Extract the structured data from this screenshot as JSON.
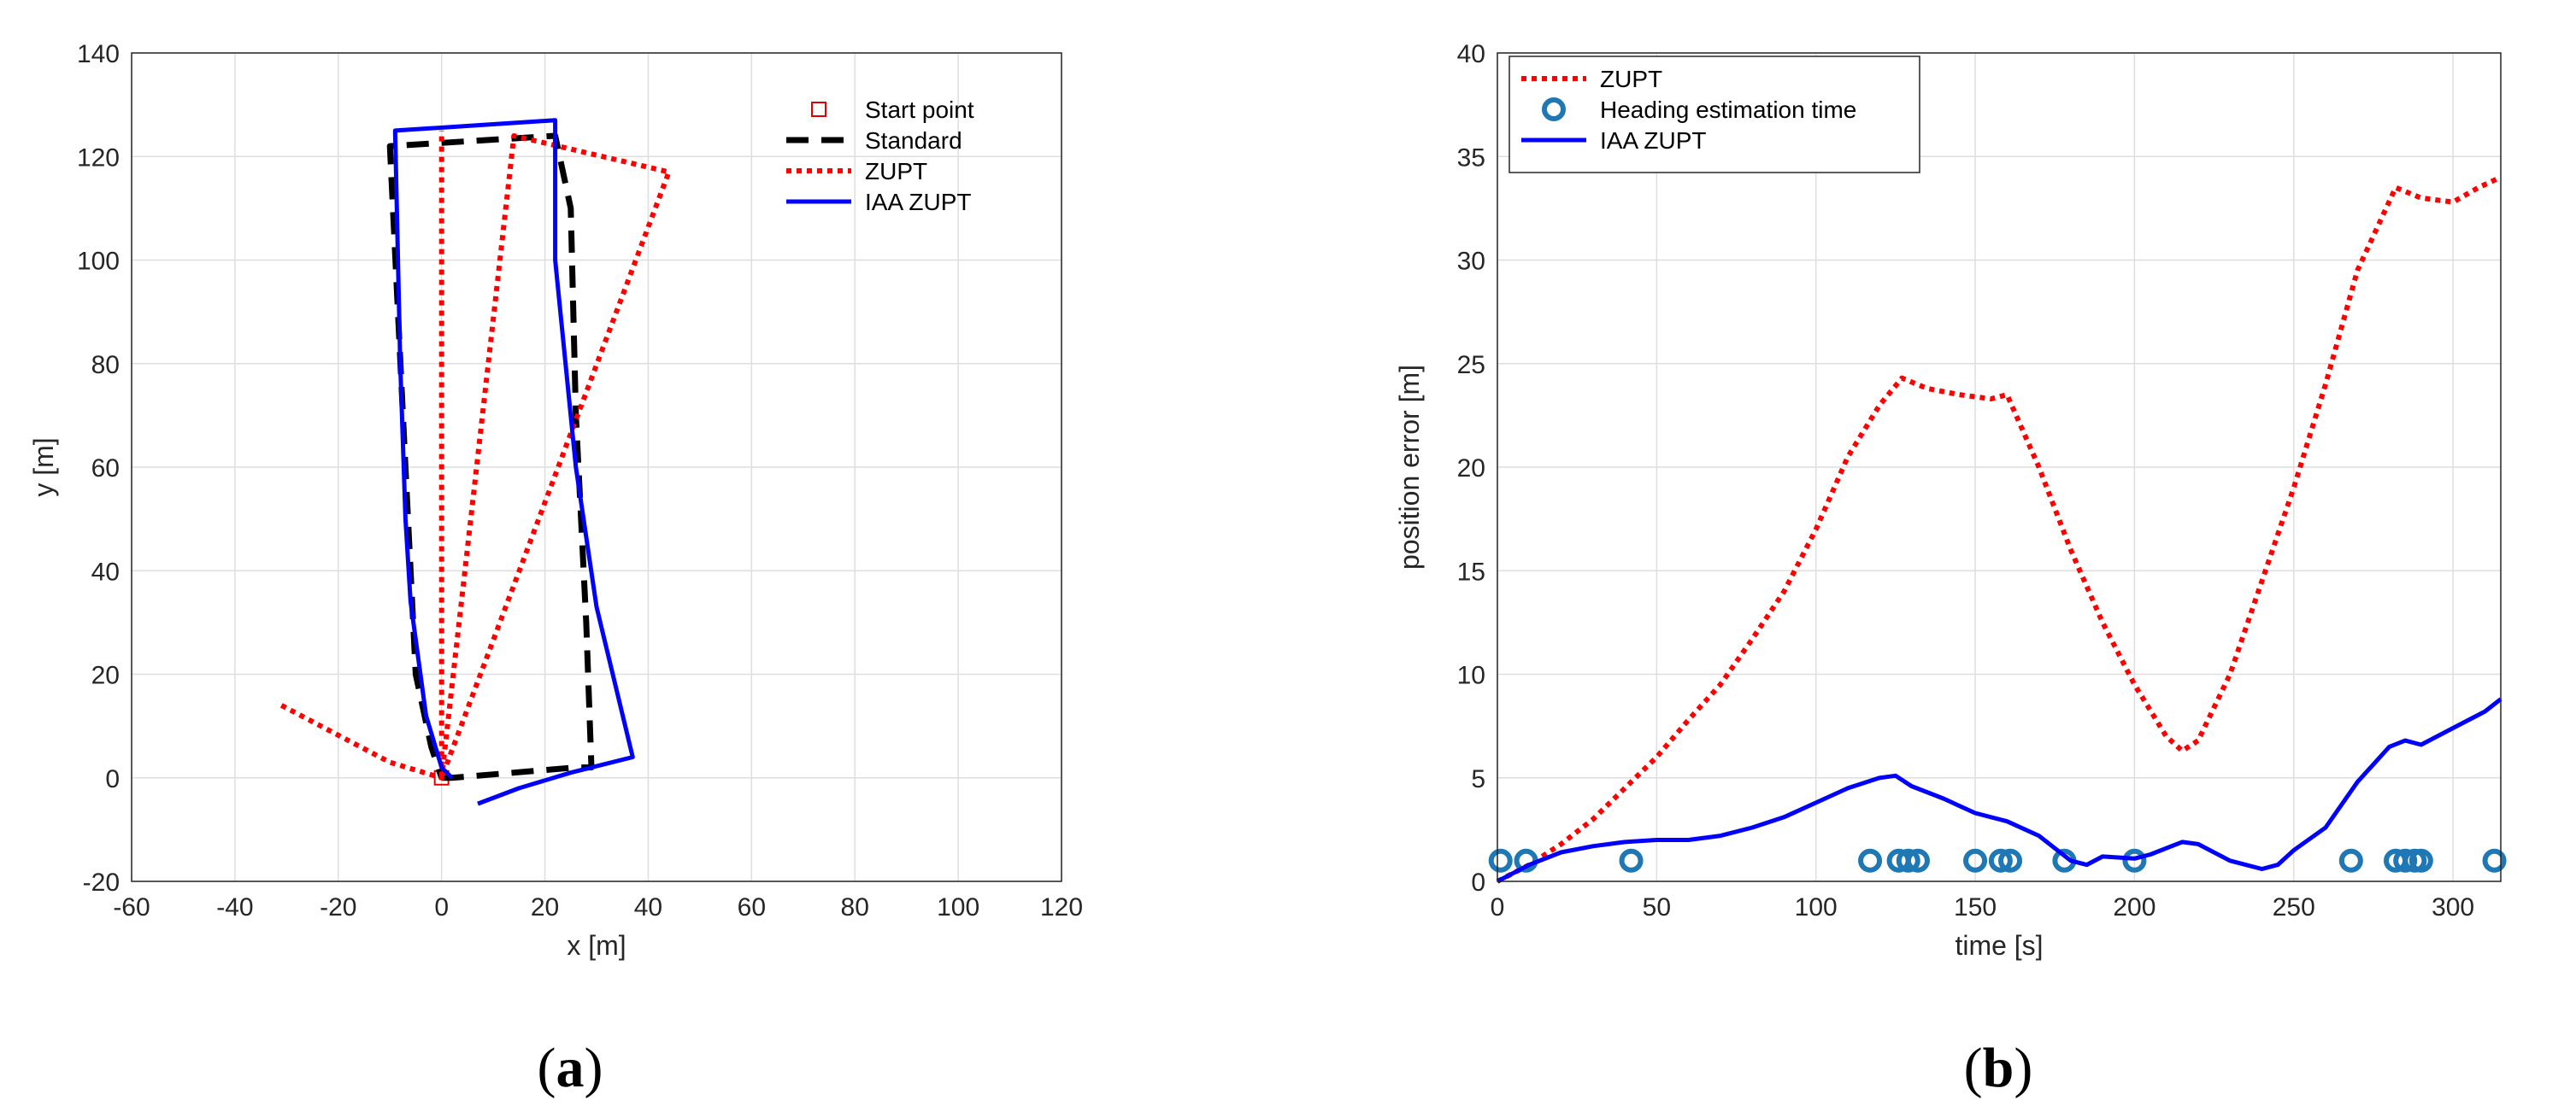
{
  "chart_data": [
    {
      "type": "line",
      "panel": "a",
      "panel_label": "(a)",
      "panel_letter": "a",
      "xlabel": "x [m]",
      "ylabel": "y [m]",
      "xlim": [
        -60,
        120
      ],
      "ylim": [
        -20,
        140
      ],
      "xticks": [
        -60,
        -40,
        -20,
        0,
        20,
        40,
        60,
        80,
        100,
        120
      ],
      "yticks": [
        -20,
        0,
        20,
        40,
        60,
        80,
        100,
        120,
        140
      ],
      "grid": true,
      "legend": {
        "placement": "top-right",
        "boxed": false
      },
      "series": [
        {
          "name": "Start point",
          "style": "marker-square",
          "color": "#e00000",
          "points": [
            [
              0,
              0
            ]
          ]
        },
        {
          "name": "Standard",
          "style": "dashed",
          "color": "#000000",
          "points": [
            [
              0,
              0
            ],
            [
              2,
              0
            ],
            [
              26,
              2
            ],
            [
              29,
              2
            ],
            [
              28,
              30
            ],
            [
              26,
              70
            ],
            [
              25,
              110
            ],
            [
              22,
              124
            ],
            [
              -10,
              122
            ],
            [
              -7,
              60
            ],
            [
              -5,
              20
            ],
            [
              -2,
              6
            ],
            [
              0,
              0
            ]
          ]
        },
        {
          "name": "ZUPT",
          "style": "dotted",
          "color": "#ff0000",
          "points": [
            [
              -31,
              14
            ],
            [
              -10,
              3
            ],
            [
              0,
              0
            ],
            [
              14,
              124
            ],
            [
              44,
              117
            ],
            [
              0,
              0
            ],
            [
              0,
              125
            ]
          ]
        },
        {
          "name": "IAA ZUPT",
          "style": "solid",
          "color": "#0000ff",
          "points": [
            [
              7,
              -5
            ],
            [
              15,
              -2
            ],
            [
              25,
              1
            ],
            [
              37,
              4
            ],
            [
              30,
              33
            ],
            [
              26,
              60
            ],
            [
              24,
              80
            ],
            [
              22,
              100
            ],
            [
              22,
              127
            ],
            [
              -9,
              125
            ],
            [
              -8,
              80
            ],
            [
              -7,
              50
            ],
            [
              -6,
              34
            ],
            [
              -3,
              12
            ],
            [
              0,
              2
            ],
            [
              2,
              0
            ]
          ]
        }
      ]
    },
    {
      "type": "line",
      "panel": "b",
      "panel_label": "(b)",
      "panel_letter": "b",
      "xlabel": "time [s]",
      "ylabel": "position error [m]",
      "xlim": [
        0,
        315
      ],
      "ylim": [
        0,
        40
      ],
      "xticks": [
        0,
        50,
        100,
        150,
        200,
        250,
        300
      ],
      "yticks": [
        0,
        5,
        10,
        15,
        20,
        25,
        30,
        35,
        40
      ],
      "grid": true,
      "legend": {
        "placement": "top-left",
        "boxed": true
      },
      "series": [
        {
          "name": "ZUPT",
          "style": "dotted",
          "color": "#ff0000",
          "points": [
            [
              0,
              0
            ],
            [
              10,
              0.8
            ],
            [
              20,
              1.8
            ],
            [
              30,
              3
            ],
            [
              40,
              4.5
            ],
            [
              50,
              6
            ],
            [
              60,
              7.8
            ],
            [
              70,
              9.5
            ],
            [
              80,
              11.7
            ],
            [
              90,
              14
            ],
            [
              100,
              17
            ],
            [
              110,
              20.5
            ],
            [
              120,
              23
            ],
            [
              127,
              24.3
            ],
            [
              135,
              23.8
            ],
            [
              145,
              23.5
            ],
            [
              155,
              23.3
            ],
            [
              160,
              23.5
            ],
            [
              170,
              20
            ],
            [
              180,
              16
            ],
            [
              190,
              12.5
            ],
            [
              200,
              9.5
            ],
            [
              210,
              7
            ],
            [
              215,
              6.3
            ],
            [
              220,
              6.8
            ],
            [
              230,
              10
            ],
            [
              240,
              14.5
            ],
            [
              250,
              19
            ],
            [
              260,
              24
            ],
            [
              270,
              29.5
            ],
            [
              282,
              33.5
            ],
            [
              290,
              33
            ],
            [
              300,
              32.8
            ],
            [
              308,
              33.5
            ],
            [
              315,
              34
            ]
          ]
        },
        {
          "name": "Heading estimation time",
          "style": "markers-circle",
          "color": "#1f77b4",
          "y": 1,
          "x": [
            1,
            9,
            42,
            117,
            126,
            129,
            132,
            150,
            158,
            161,
            178,
            200,
            268,
            282,
            285,
            288,
            290,
            313
          ]
        },
        {
          "name": "IAA ZUPT",
          "style": "solid",
          "color": "#0000ff",
          "points": [
            [
              0,
              0
            ],
            [
              10,
              0.8
            ],
            [
              20,
              1.4
            ],
            [
              30,
              1.7
            ],
            [
              40,
              1.9
            ],
            [
              50,
              2
            ],
            [
              60,
              2
            ],
            [
              70,
              2.2
            ],
            [
              80,
              2.6
            ],
            [
              90,
              3.1
            ],
            [
              100,
              3.8
            ],
            [
              110,
              4.5
            ],
            [
              120,
              5
            ],
            [
              125,
              5.1
            ],
            [
              130,
              4.6
            ],
            [
              140,
              4
            ],
            [
              150,
              3.3
            ],
            [
              160,
              2.9
            ],
            [
              170,
              2.2
            ],
            [
              175,
              1.6
            ],
            [
              180,
              1
            ],
            [
              185,
              0.8
            ],
            [
              190,
              1.2
            ],
            [
              200,
              1.1
            ],
            [
              205,
              1.3
            ],
            [
              215,
              1.9
            ],
            [
              220,
              1.8
            ],
            [
              230,
              1
            ],
            [
              240,
              0.6
            ],
            [
              245,
              0.8
            ],
            [
              250,
              1.5
            ],
            [
              260,
              2.6
            ],
            [
              270,
              4.8
            ],
            [
              280,
              6.5
            ],
            [
              285,
              6.8
            ],
            [
              290,
              6.6
            ],
            [
              300,
              7.4
            ],
            [
              310,
              8.2
            ],
            [
              315,
              8.8
            ]
          ]
        }
      ]
    }
  ]
}
